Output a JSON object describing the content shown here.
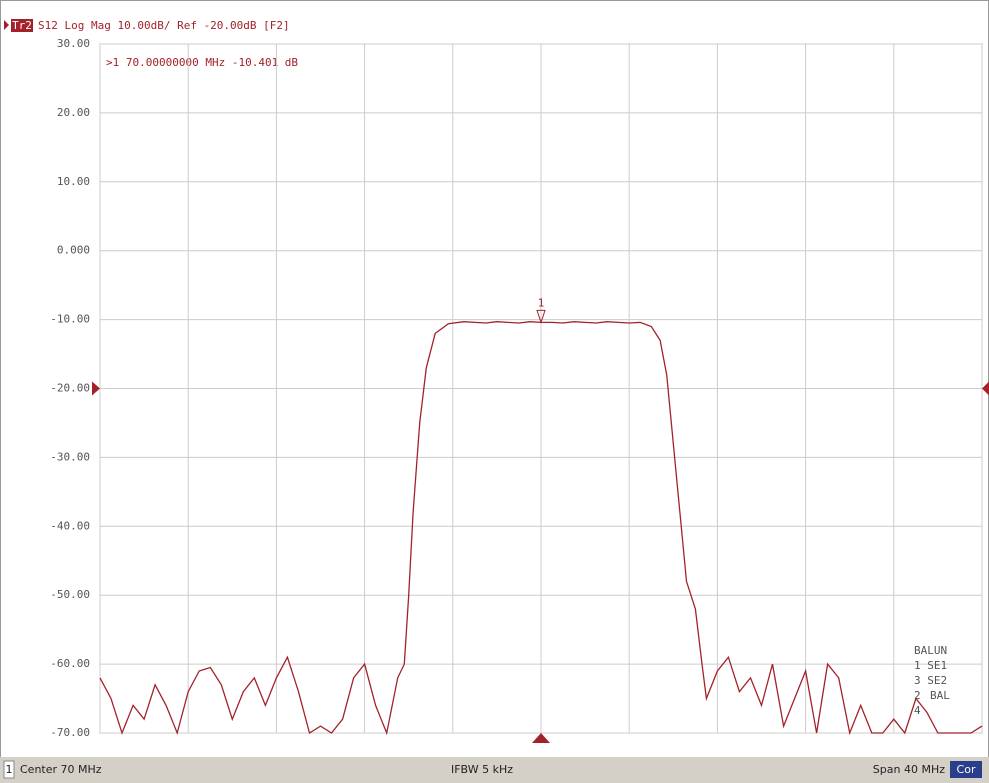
{
  "chart_data": {
    "type": "line",
    "trace_label": "Tr2",
    "title": "S12 Log Mag 10.00dB/ Ref -20.00dB [F2]",
    "color": "#a3222a",
    "ref_level": -20,
    "x": [
      50,
      50.5,
      51,
      51.5,
      52,
      52.5,
      53,
      53.5,
      54,
      54.5,
      55,
      55.5,
      56,
      56.5,
      57,
      57.5,
      58,
      58.5,
      59,
      59.5,
      60,
      60.5,
      61,
      61.5,
      62,
      62.5,
      63,
      63.5,
      63.8,
      64,
      64.2,
      64.5,
      64.8,
      65.2,
      65.8,
      66.5,
      67,
      67.5,
      68,
      68.5,
      69,
      69.5,
      70,
      70.5,
      71,
      71.5,
      72,
      72.5,
      73,
      73.5,
      74,
      74.5,
      75,
      75.4,
      75.7,
      76,
      76.3,
      76.6,
      77,
      77.3,
      77.5,
      78,
      78.5,
      79,
      79.5,
      80,
      80.5,
      81,
      81.5,
      82,
      82.5,
      83,
      83.5,
      84,
      84.5,
      85,
      85.5,
      86,
      86.5,
      87,
      87.5,
      88,
      88.5,
      89,
      89.5,
      90
    ],
    "values": [
      -62,
      -65,
      -70,
      -66,
      -68,
      -63,
      -66,
      -70,
      -64,
      -61,
      -60.5,
      -63,
      -68,
      -64,
      -62,
      -66,
      -62,
      -59,
      -64,
      -70,
      -69,
      -70,
      -68,
      -62,
      -60,
      -66,
      -70,
      -62,
      -60,
      -50,
      -38,
      -25,
      -17,
      -12,
      -10.6,
      -10.3,
      -10.4,
      -10.5,
      -10.3,
      -10.4,
      -10.5,
      -10.3,
      -10.401,
      -10.4,
      -10.5,
      -10.3,
      -10.4,
      -10.5,
      -10.3,
      -10.4,
      -10.5,
      -10.4,
      -11,
      -13,
      -18,
      -28,
      -38,
      -48,
      -52,
      -60,
      -65,
      -61,
      -59,
      -64,
      -62,
      -66,
      -60,
      -69,
      -65,
      -61,
      -70,
      -60,
      -62,
      -70,
      -66,
      -70,
      -70,
      -68,
      -70,
      -65,
      -67,
      -70,
      -70,
      -70,
      -70,
      -69
    ],
    "xlim": [
      50,
      90
    ],
    "xticks": [
      50,
      54,
      58,
      62,
      66,
      70,
      74,
      78,
      82,
      86,
      90
    ],
    "ylim": [
      -70,
      30
    ],
    "yticks": [
      {
        "value": 30,
        "label": "30.00"
      },
      {
        "value": 20,
        "label": "20.00"
      },
      {
        "value": 10,
        "label": "10.00"
      },
      {
        "value": 0,
        "label": "0.000"
      },
      {
        "value": -10,
        "label": "-10.00"
      },
      {
        "value": -20,
        "label": "-20.00"
      },
      {
        "value": -30,
        "label": "-30.00"
      },
      {
        "value": -40,
        "label": "-40.00"
      },
      {
        "value": -50,
        "label": "-50.00"
      },
      {
        "value": -60,
        "label": "-60.00"
      },
      {
        "value": -70,
        "label": "-70.00"
      }
    ],
    "grid": true,
    "marker": {
      "label": "1",
      "x": 70,
      "y": -10.401,
      "readout": ">1  70.00000000 MHz -10.401 dB"
    },
    "balun": {
      "title": "BALUN",
      "rows": [
        "1   SE1",
        "3   SE2",
        "2",
        "4",
        "BAL"
      ]
    },
    "footer": {
      "channel": "1",
      "center": "Center 70 MHz",
      "ifbw": "IFBW 5 kHz",
      "span": "Span 40 MHz",
      "cor": "Cor"
    }
  }
}
